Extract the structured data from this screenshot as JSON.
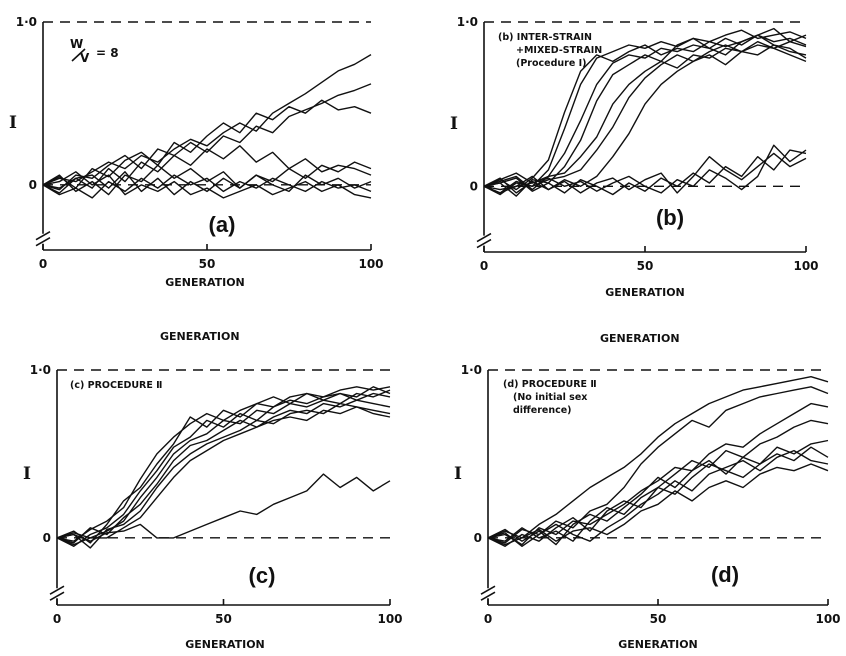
{
  "floating_labels": [
    "GENERATION",
    "GENERATION"
  ],
  "chart_data": [
    {
      "id": "a",
      "type": "line",
      "panel_tag": "(a)",
      "xlabel": "GENERATION",
      "ylabel": "I",
      "annotation": {
        "ratio_top": "W",
        "ratio_bottom": "V",
        "ratio_value": "= 8"
      },
      "xlim": [
        0,
        100
      ],
      "ylim": [
        -0.4,
        1.0
      ],
      "xticks": [
        "0",
        "50",
        "100"
      ],
      "yticks": [
        "0",
        "1·0"
      ],
      "grid": false,
      "x": [
        0,
        5,
        10,
        15,
        20,
        25,
        30,
        35,
        40,
        45,
        50,
        55,
        60,
        65,
        70,
        75,
        80,
        85,
        90,
        95,
        100
      ],
      "series": [
        {
          "values": [
            0,
            0.04,
            0.02,
            0.08,
            0.14,
            0.1,
            0.18,
            0.14,
            0.22,
            0.28,
            0.24,
            0.32,
            0.38,
            0.33,
            0.44,
            0.5,
            0.56,
            0.63,
            0.7,
            0.74,
            0.8
          ]
        },
        {
          "values": [
            0,
            -0.03,
            0.06,
            0.04,
            0.12,
            0.18,
            0.1,
            0.22,
            0.18,
            0.26,
            0.2,
            0.3,
            0.26,
            0.36,
            0.32,
            0.42,
            0.46,
            0.5,
            0.55,
            0.58,
            0.62
          ]
        },
        {
          "values": [
            0,
            0.05,
            -0.02,
            0.1,
            0.05,
            0.15,
            0.2,
            0.12,
            0.26,
            0.2,
            0.3,
            0.38,
            0.32,
            0.44,
            0.4,
            0.48,
            0.44,
            0.52,
            0.46,
            0.48,
            0.44
          ]
        },
        {
          "values": [
            0,
            -0.05,
            0.04,
            -0.02,
            0.1,
            0.02,
            0.14,
            0.08,
            0.18,
            0.12,
            0.22,
            0.16,
            0.24,
            0.14,
            0.2,
            0.1,
            0.16,
            0.08,
            0.12,
            0.1,
            0.06
          ]
        },
        {
          "values": [
            0,
            0.06,
            -0.04,
            0.02,
            -0.06,
            0.06,
            0.02,
            0.12,
            0.04,
            0.1,
            0.02,
            0.08,
            -0.02,
            0.06,
            0.02,
            0.1,
            0.04,
            0.12,
            0.08,
            0.14,
            0.1
          ]
        },
        {
          "values": [
            0,
            -0.06,
            -0.02,
            -0.08,
            0.02,
            -0.04,
            0.04,
            -0.02,
            0.06,
            0.0,
            0.04,
            -0.04,
            0.02,
            -0.02,
            0.04,
            0.0,
            -0.04,
            0.02,
            -0.02,
            0.0,
            -0.04
          ]
        },
        {
          "values": [
            0,
            0.02,
            0.08,
            0.0,
            0.06,
            -0.06,
            0.0,
            -0.04,
            0.02,
            -0.06,
            -0.02,
            -0.08,
            -0.04,
            0.0,
            -0.06,
            -0.02,
            0.02,
            -0.04,
            0.0,
            -0.06,
            -0.08
          ]
        },
        {
          "values": [
            0,
            -0.02,
            0.04,
            0.06,
            -0.02,
            0.08,
            -0.04,
            0.04,
            -0.06,
            0.02,
            -0.04,
            0.04,
            -0.02,
            0.06,
            0.0,
            -0.04,
            0.06,
            0.0,
            0.04,
            -0.02,
            0.02
          ]
        }
      ]
    },
    {
      "id": "b",
      "type": "line",
      "panel_tag": "(b)",
      "xlabel": "GENERATION",
      "ylabel": "I",
      "annotation": {
        "lines": [
          "(b) INTER-STRAIN",
          "+MIXED-STRAIN",
          "(Procedure I)"
        ]
      },
      "xlim": [
        0,
        100
      ],
      "ylim": [
        -0.4,
        1.0
      ],
      "xticks": [
        "0",
        "50",
        "100"
      ],
      "yticks": [
        "0",
        "1·0"
      ],
      "grid": false,
      "x": [
        0,
        5,
        10,
        15,
        20,
        25,
        30,
        35,
        40,
        45,
        50,
        55,
        60,
        65,
        70,
        75,
        80,
        85,
        90,
        95,
        100
      ],
      "series": [
        {
          "values": [
            0,
            -0.04,
            0.03,
            0.0,
            0.1,
            0.35,
            0.62,
            0.78,
            0.82,
            0.86,
            0.84,
            0.88,
            0.85,
            0.9,
            0.88,
            0.92,
            0.95,
            0.9,
            0.92,
            0.94,
            0.9
          ]
        },
        {
          "values": [
            0,
            0.04,
            -0.02,
            0.05,
            0.16,
            0.45,
            0.7,
            0.8,
            0.76,
            0.82,
            0.86,
            0.8,
            0.84,
            0.82,
            0.88,
            0.85,
            0.88,
            0.92,
            0.88,
            0.9,
            0.86
          ]
        },
        {
          "values": [
            0,
            -0.02,
            0.0,
            0.02,
            0.06,
            0.2,
            0.4,
            0.62,
            0.75,
            0.8,
            0.78,
            0.84,
            0.82,
            0.86,
            0.84,
            0.9,
            0.86,
            0.92,
            0.96,
            0.88,
            0.92
          ]
        },
        {
          "values": [
            0,
            0.02,
            -0.06,
            0.04,
            0.02,
            0.12,
            0.28,
            0.52,
            0.68,
            0.74,
            0.8,
            0.76,
            0.86,
            0.9,
            0.84,
            0.8,
            0.88,
            0.92,
            0.86,
            0.82,
            0.8
          ]
        },
        {
          "values": [
            0,
            0.03,
            0.06,
            -0.02,
            0.06,
            0.08,
            0.18,
            0.3,
            0.5,
            0.62,
            0.7,
            0.76,
            0.72,
            0.8,
            0.78,
            0.84,
            0.82,
            0.86,
            0.84,
            0.88,
            0.85
          ]
        },
        {
          "values": [
            0,
            -0.05,
            0.02,
            0.0,
            0.04,
            0.06,
            0.1,
            0.22,
            0.36,
            0.54,
            0.66,
            0.74,
            0.8,
            0.76,
            0.82,
            0.86,
            0.82,
            0.8,
            0.86,
            0.84,
            0.78
          ]
        },
        {
          "values": [
            0,
            0.05,
            -0.04,
            0.03,
            -0.02,
            0.04,
            0.0,
            0.06,
            0.18,
            0.32,
            0.5,
            0.62,
            0.7,
            0.76,
            0.8,
            0.74,
            0.82,
            0.88,
            0.84,
            0.8,
            0.76
          ]
        },
        {
          "values": [
            0,
            0.02,
            0.05,
            -0.03,
            0.02,
            -0.04,
            0.04,
            0.0,
            -0.05,
            0.02,
            -0.03,
            0.05,
            0.0,
            0.08,
            0.02,
            0.12,
            0.06,
            0.18,
            0.1,
            0.22,
            0.2
          ]
        },
        {
          "values": [
            0,
            -0.04,
            0.0,
            0.06,
            -0.02,
            0.03,
            -0.04,
            0.02,
            0.05,
            -0.02,
            0.04,
            0.08,
            -0.04,
            0.06,
            0.18,
            0.1,
            0.04,
            0.12,
            0.2,
            0.12,
            0.17
          ]
        },
        {
          "values": [
            0,
            0.04,
            0.08,
            0.02,
            0.05,
            0.0,
            0.03,
            -0.03,
            0.02,
            0.06,
            0.0,
            -0.04,
            0.04,
            0.0,
            0.1,
            0.05,
            -0.02,
            0.06,
            0.25,
            0.15,
            0.22
          ]
        }
      ]
    },
    {
      "id": "c",
      "type": "line",
      "panel_tag": "(c)",
      "xlabel": "GENERATION",
      "ylabel": "I",
      "annotation": {
        "lines": [
          "(c) PROCEDURE Ⅱ"
        ]
      },
      "xlim": [
        0,
        100
      ],
      "ylim": [
        -0.4,
        1.0
      ],
      "xticks": [
        "0",
        "50",
        "100"
      ],
      "yticks": [
        "0",
        "1·0"
      ],
      "grid": false,
      "x": [
        0,
        5,
        10,
        15,
        20,
        25,
        30,
        35,
        40,
        45,
        50,
        55,
        60,
        65,
        70,
        75,
        80,
        85,
        90,
        95,
        100
      ],
      "series": [
        {
          "values": [
            0,
            -0.02,
            0.05,
            0.1,
            0.18,
            0.35,
            0.5,
            0.6,
            0.68,
            0.74,
            0.7,
            0.76,
            0.8,
            0.78,
            0.84,
            0.86,
            0.84,
            0.88,
            0.9,
            0.88,
            0.9
          ]
        },
        {
          "values": [
            0,
            0.04,
            -0.03,
            0.08,
            0.22,
            0.3,
            0.44,
            0.56,
            0.72,
            0.66,
            0.76,
            0.72,
            0.8,
            0.84,
            0.8,
            0.86,
            0.82,
            0.86,
            0.84,
            0.9,
            0.86
          ]
        },
        {
          "values": [
            0,
            -0.05,
            0.02,
            0.06,
            0.14,
            0.28,
            0.4,
            0.54,
            0.6,
            0.7,
            0.66,
            0.74,
            0.7,
            0.78,
            0.82,
            0.8,
            0.84,
            0.86,
            0.82,
            0.86,
            0.84
          ]
        },
        {
          "values": [
            0,
            0.03,
            0.0,
            0.04,
            0.1,
            0.24,
            0.36,
            0.5,
            0.58,
            0.62,
            0.7,
            0.68,
            0.76,
            0.74,
            0.8,
            0.78,
            0.82,
            0.8,
            0.86,
            0.84,
            0.88
          ]
        },
        {
          "values": [
            0,
            -0.03,
            0.06,
            0.02,
            0.12,
            0.2,
            0.32,
            0.46,
            0.55,
            0.58,
            0.64,
            0.7,
            0.66,
            0.72,
            0.76,
            0.74,
            0.8,
            0.78,
            0.82,
            0.8,
            0.78
          ]
        },
        {
          "values": [
            0,
            0.02,
            -0.06,
            0.05,
            0.08,
            0.16,
            0.3,
            0.42,
            0.5,
            0.56,
            0.6,
            0.64,
            0.7,
            0.68,
            0.74,
            0.76,
            0.74,
            0.8,
            0.78,
            0.76,
            0.74
          ]
        },
        {
          "values": [
            0,
            -0.04,
            0.0,
            0.0,
            0.06,
            0.12,
            0.24,
            0.36,
            0.46,
            0.52,
            0.58,
            0.62,
            0.66,
            0.7,
            0.72,
            0.7,
            0.76,
            0.74,
            0.78,
            0.74,
            0.72
          ]
        },
        {
          "values": [
            0,
            0.02,
            -0.02,
            0.03,
            0.04,
            0.08,
            0.0,
            0.0,
            0.04,
            0.08,
            0.12,
            0.16,
            0.14,
            0.2,
            0.24,
            0.28,
            0.38,
            0.3,
            0.36,
            0.28,
            0.34
          ]
        }
      ]
    },
    {
      "id": "d",
      "type": "line",
      "panel_tag": "(d)",
      "xlabel": "GENERATION",
      "ylabel": "I",
      "annotation": {
        "lines": [
          "(d) PROCEDURE Ⅱ",
          "(No initial sex",
          "difference)"
        ]
      },
      "xlim": [
        0,
        100
      ],
      "ylim": [
        -0.4,
        1.0
      ],
      "xticks": [
        "0",
        "50",
        "100"
      ],
      "yticks": [
        "0",
        "1·0"
      ],
      "grid": false,
      "x": [
        0,
        5,
        10,
        15,
        20,
        25,
        30,
        35,
        40,
        45,
        50,
        55,
        60,
        65,
        70,
        75,
        80,
        85,
        90,
        95,
        100
      ],
      "series": [
        {
          "values": [
            0,
            0.04,
            0.0,
            0.08,
            0.14,
            0.22,
            0.3,
            0.36,
            0.42,
            0.5,
            0.6,
            0.68,
            0.74,
            0.8,
            0.84,
            0.88,
            0.9,
            0.92,
            0.94,
            0.96,
            0.93
          ]
        },
        {
          "values": [
            0,
            -0.03,
            0.05,
            0.02,
            0.1,
            0.06,
            0.16,
            0.2,
            0.3,
            0.44,
            0.54,
            0.62,
            0.7,
            0.66,
            0.76,
            0.8,
            0.84,
            0.86,
            0.88,
            0.9,
            0.86
          ]
        },
        {
          "values": [
            0,
            0.02,
            -0.04,
            0.06,
            0.02,
            0.1,
            0.08,
            0.14,
            0.2,
            0.28,
            0.34,
            0.42,
            0.4,
            0.5,
            0.56,
            0.54,
            0.62,
            0.68,
            0.74,
            0.8,
            0.78
          ]
        },
        {
          "values": [
            0,
            -0.05,
            0.02,
            -0.02,
            0.06,
            0.12,
            0.04,
            0.16,
            0.22,
            0.18,
            0.3,
            0.38,
            0.46,
            0.42,
            0.52,
            0.48,
            0.56,
            0.6,
            0.66,
            0.7,
            0.68
          ]
        },
        {
          "values": [
            0,
            0.05,
            -0.02,
            0.04,
            -0.04,
            0.08,
            0.14,
            0.1,
            0.18,
            0.26,
            0.36,
            0.3,
            0.4,
            0.46,
            0.38,
            0.48,
            0.44,
            0.54,
            0.5,
            0.56,
            0.58
          ]
        },
        {
          "values": [
            0,
            -0.02,
            0.06,
            0.0,
            0.04,
            -0.02,
            0.1,
            0.18,
            0.14,
            0.24,
            0.3,
            0.26,
            0.36,
            0.44,
            0.4,
            0.36,
            0.44,
            0.5,
            0.46,
            0.54,
            0.48
          ]
        },
        {
          "values": [
            0,
            0.03,
            -0.05,
            0.02,
            0.08,
            0.02,
            -0.02,
            0.06,
            0.12,
            0.2,
            0.26,
            0.34,
            0.28,
            0.38,
            0.42,
            0.46,
            0.4,
            0.48,
            0.52,
            0.46,
            0.44
          ]
        },
        {
          "values": [
            0,
            -0.04,
            0.0,
            0.05,
            -0.02,
            0.04,
            0.06,
            0.02,
            0.08,
            0.16,
            0.2,
            0.28,
            0.22,
            0.3,
            0.34,
            0.3,
            0.38,
            0.42,
            0.4,
            0.44,
            0.4
          ]
        }
      ]
    }
  ]
}
